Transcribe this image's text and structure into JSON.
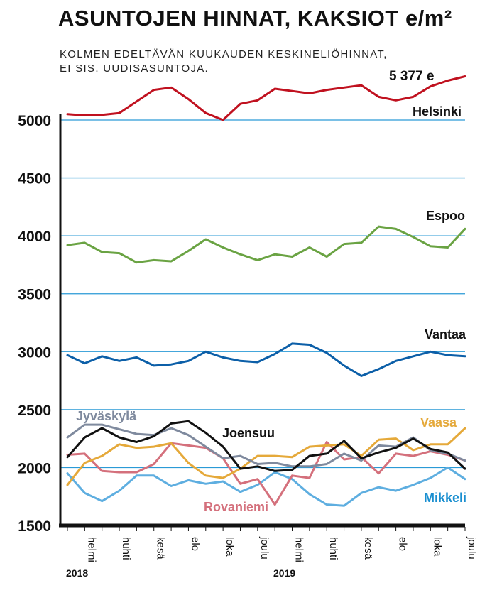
{
  "header": {
    "title": "ASUNTOJEN HINNAT, KAKSIOT e/m²",
    "subtitle_line1": "KOLMEN EDELTÄVÄN KUUKAUDEN KESKINELIÖHINNAT,",
    "subtitle_line2": "EI SIS. UUDISASUNTOJA."
  },
  "chart_data": {
    "type": "line",
    "title": "ASUNTOJEN HINNAT, KAKSIOT e/m²",
    "ylim": [
      1500,
      5400
    ],
    "yticks": [
      1500,
      2000,
      2500,
      3000,
      3500,
      4000,
      4500,
      5000
    ],
    "grid": "horizontal",
    "x_tick_labels": [
      "helmi",
      "huhti",
      "kesä",
      "elo",
      "loka",
      "joulu",
      "helmi",
      "huhti",
      "kesä",
      "elo",
      "loka",
      "joulu"
    ],
    "years": [
      "2018",
      "2019"
    ],
    "x": [
      "2018-01",
      "2018-02",
      "2018-03",
      "2018-04",
      "2018-05",
      "2018-06",
      "2018-07",
      "2018-08",
      "2018-09",
      "2018-10",
      "2018-11",
      "2018-12",
      "2019-01",
      "2019-02",
      "2019-03",
      "2019-04",
      "2019-05",
      "2019-06",
      "2019-07",
      "2019-08",
      "2019-09",
      "2019-10",
      "2019-11",
      "2019-12"
    ],
    "annotations": [
      {
        "text": "5 377 e",
        "series": "Helsinki"
      }
    ],
    "series": [
      {
        "name": "Helsinki",
        "color": "#c0111f",
        "label_color": "#111111",
        "values": [
          5050,
          5040,
          5045,
          5060,
          5160,
          5260,
          5280,
          5180,
          5060,
          5000,
          5140,
          5170,
          5270,
          5250,
          5230,
          5260,
          5280,
          5300,
          5200,
          5170,
          5200,
          5290,
          5340,
          5377
        ]
      },
      {
        "name": "Espoo",
        "color": "#6aa343",
        "label_color": "#111111",
        "values": [
          3920,
          3940,
          3860,
          3850,
          3770,
          3790,
          3780,
          3870,
          3970,
          3900,
          3840,
          3790,
          3840,
          3820,
          3900,
          3820,
          3930,
          3940,
          4080,
          4060,
          3990,
          3910,
          3900,
          4060
        ]
      },
      {
        "name": "Vantaa",
        "color": "#0c5fa8",
        "label_color": "#111111",
        "values": [
          2970,
          2900,
          2960,
          2920,
          2950,
          2880,
          2890,
          2920,
          3000,
          2950,
          2920,
          2910,
          2980,
          3070,
          3060,
          2990,
          2880,
          2790,
          2850,
          2920,
          2960,
          3000,
          2970,
          2960
        ]
      },
      {
        "name": "Jyväskylä",
        "color": "#7f8a9e",
        "label_color": "#7f8a9e",
        "values": [
          2260,
          2370,
          2370,
          2330,
          2290,
          2280,
          2340,
          2280,
          2180,
          2080,
          2100,
          2030,
          2040,
          2010,
          2010,
          2030,
          2120,
          2060,
          2190,
          2180,
          2260,
          2150,
          2120,
          2060
        ]
      },
      {
        "name": "Joensuu",
        "color": "#111111",
        "label_color": "#111111",
        "values": [
          2090,
          2260,
          2340,
          2260,
          2220,
          2270,
          2380,
          2400,
          2300,
          2180,
          1990,
          2010,
          1970,
          1980,
          2100,
          2120,
          2230,
          2080,
          2130,
          2170,
          2250,
          2160,
          2130,
          1990
        ]
      },
      {
        "name": "Vaasa",
        "color": "#e5a93a",
        "label_color": "#e5a93a",
        "values": [
          1850,
          2040,
          2100,
          2200,
          2170,
          2180,
          2210,
          2040,
          1930,
          1910,
          1990,
          2100,
          2100,
          2090,
          2180,
          2190,
          2200,
          2100,
          2240,
          2250,
          2150,
          2200,
          2200,
          2340
        ]
      },
      {
        "name": "Rovaniemi",
        "color": "#d4707c",
        "label_color": "#d4707c",
        "values": [
          2110,
          2120,
          1970,
          1960,
          1960,
          2030,
          2210,
          2190,
          2170,
          2080,
          1860,
          1900,
          1680,
          1930,
          1910,
          2220,
          2070,
          2090,
          1950,
          2120,
          2100,
          2140,
          2110,
          2060
        ]
      },
      {
        "name": "Mikkeli",
        "color": "#5eaee0",
        "label_color": "#1a8fd0",
        "values": [
          1950,
          1780,
          1710,
          1800,
          1930,
          1930,
          1840,
          1890,
          1860,
          1880,
          1790,
          1850,
          1960,
          1900,
          1770,
          1680,
          1670,
          1780,
          1830,
          1800,
          1850,
          1910,
          2000,
          1900
        ]
      }
    ]
  }
}
